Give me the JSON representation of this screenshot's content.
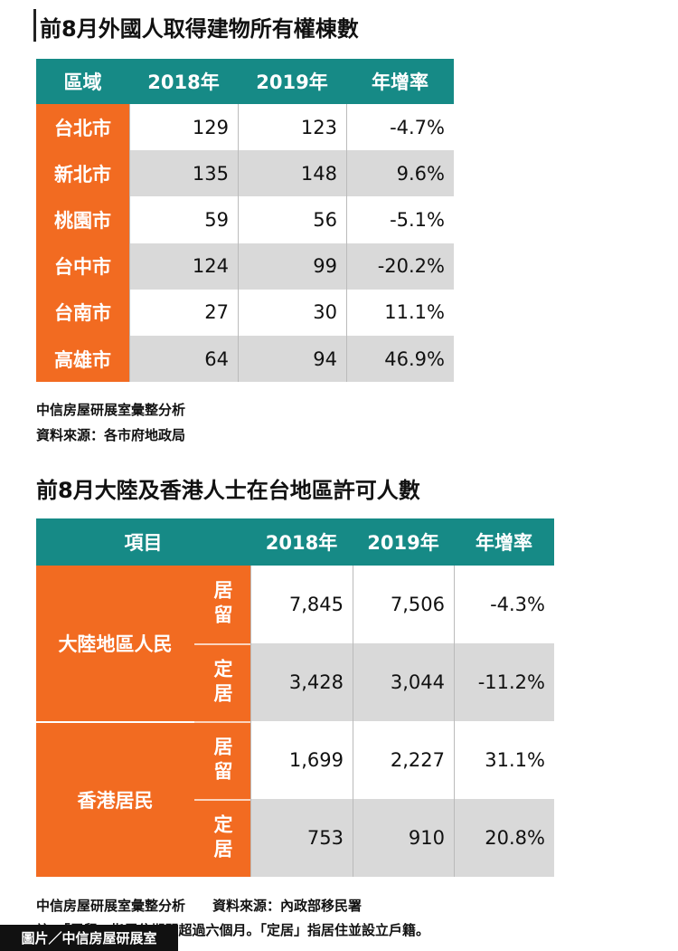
{
  "table1": {
    "title": "前8月外國人取得建物所有權棟數",
    "header": [
      "區域",
      "2018年",
      "2019年",
      "年增率"
    ],
    "rows": [
      [
        "台北市",
        "129",
        "123",
        "-4.7%"
      ],
      [
        "新北市",
        "135",
        "148",
        "9.6%"
      ],
      [
        "桃園市",
        "59",
        "56",
        "-5.1%"
      ],
      [
        "台中市",
        "124",
        "99",
        "-20.2%"
      ],
      [
        "台南市",
        "27",
        "30",
        "11.1%"
      ],
      [
        "高雄市",
        "64",
        "94",
        "46.9%"
      ]
    ],
    "notes": [
      "中信房屋研展室彙整分析",
      "資料來源：各市府地政局"
    ]
  },
  "table2": {
    "title": "前8月大陸及香港人士在台地區許可人數",
    "header": [
      "項目",
      "2018年",
      "2019年",
      "年增率"
    ],
    "groups": [
      {
        "name": "大陸地區人民",
        "rows": [
          {
            "type": "居留",
            "values": [
              "7,845",
              "7,506",
              "-4.3%"
            ]
          },
          {
            "type": "定居",
            "values": [
              "3,428",
              "3,044",
              "-11.2%"
            ]
          }
        ]
      },
      {
        "name": "香港居民",
        "rows": [
          {
            "type": "居留",
            "values": [
              "1,699",
              "2,227",
              "31.1%"
            ]
          },
          {
            "type": "定居",
            "values": [
              "753",
              "910",
              "20.8%"
            ]
          }
        ]
      }
    ],
    "notes": [
      "中信房屋研展室彙整分析　　資料來源：內政部移民署",
      "註：「居留」指居住期間超過六個月。「定居」指居住並設立戶籍。"
    ]
  },
  "caption": "圖片／中信房屋研展室"
}
